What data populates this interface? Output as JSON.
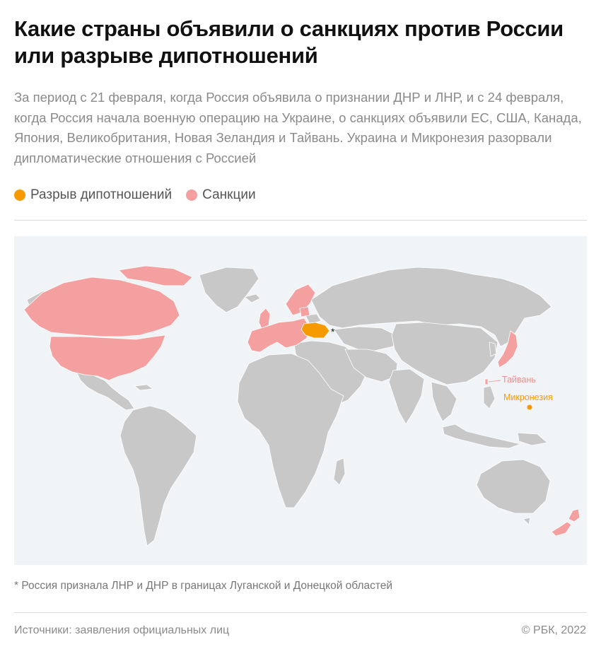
{
  "header": {
    "title": "Какие страны объявили о санкциях против России или разрыве дипотношений",
    "subtitle": "За период с 21 февраля, когда Россия объявила о признании ДНР и ЛНР, и с 24 февраля, когда Россия начала военную операцию на Украине, о санкциях объявили ЕС, США, Канада, Япония, Великобритания, Новая Зеландия и Тайвань. Украина и Микронезия разорвали дипломатические отношения с Россией"
  },
  "legend": [
    {
      "label": "Разрыв дипотношений",
      "color": "#f59a00"
    },
    {
      "label": "Санкции",
      "color": "#f5a0a0"
    }
  ],
  "map": {
    "colors": {
      "ocean": "#f1f4f7",
      "land": "#c8c8c8",
      "border": "#ffffff",
      "sanctions": "#f5a0a0",
      "break_relations": "#f59a00"
    },
    "callouts": {
      "taiwan": "Тайвань",
      "micronesia": "Микронезия",
      "asterisk": "*"
    }
  },
  "footnote": "* Россия признала ЛНР и ДНР в границах Луганской и Донецкой областей",
  "footer": {
    "sources": "Источники: заявления официальных лиц",
    "copyright": "© РБК, 2022"
  }
}
